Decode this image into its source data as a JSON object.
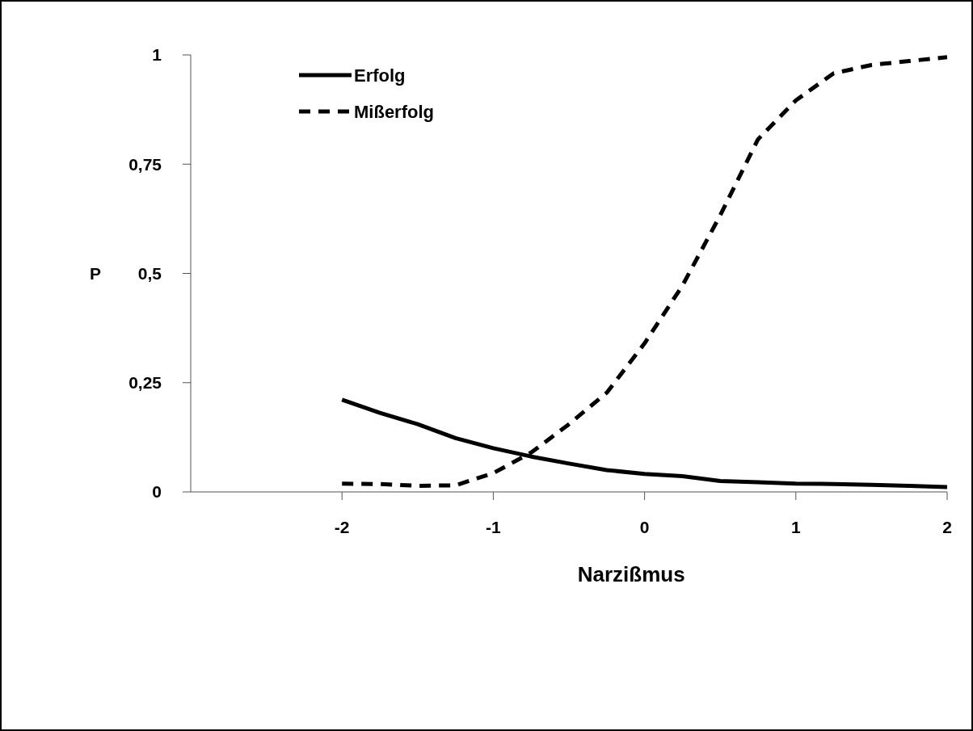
{
  "chart_data": {
    "type": "line",
    "xlabel": "Narzißmus",
    "ylabel": "P",
    "x": [
      -2,
      -1.75,
      -1.5,
      -1.25,
      -1,
      -0.75,
      -0.5,
      -0.25,
      0,
      0.25,
      0.5,
      0.75,
      1,
      1.25,
      1.5,
      1.75,
      2
    ],
    "series": [
      {
        "name": "Erfolg",
        "color": "#000000",
        "line_style": "solid",
        "values": [
          0.211,
          0.181,
          0.155,
          0.123,
          0.1,
          0.081,
          0.065,
          0.05,
          0.041,
          0.036,
          0.025,
          0.022,
          0.019,
          0.018,
          0.016,
          0.014,
          0.011
        ]
      },
      {
        "name": "Mißerfolg",
        "color": "#000000",
        "line_style": "dashed",
        "values": [
          0.019,
          0.018,
          0.014,
          0.015,
          0.043,
          0.09,
          0.155,
          0.227,
          0.34,
          0.472,
          0.633,
          0.807,
          0.896,
          0.958,
          0.977,
          0.986,
          0.995
        ]
      }
    ],
    "xlim": [
      -3,
      2
    ],
    "xticks": [
      -2,
      -1,
      0,
      1,
      2
    ],
    "ylim": [
      0,
      1
    ],
    "yticks": [
      0,
      {
        "value": 0.25,
        "label": "0,25"
      },
      {
        "value": 0.5,
        "label": "0,5"
      },
      {
        "value": 0.75,
        "label": "0,75"
      },
      1
    ],
    "grid": false,
    "legend": "top left"
  }
}
